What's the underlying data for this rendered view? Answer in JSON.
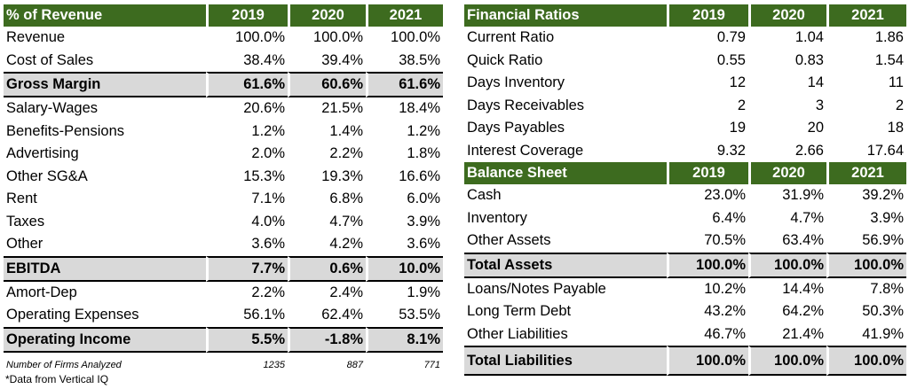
{
  "income": {
    "header": [
      "% of Revenue",
      "2019",
      "2020",
      "2021"
    ],
    "rows": [
      {
        "label": "Revenue",
        "values": [
          "100.0%",
          "100.0%",
          "100.0%"
        ],
        "bold": false
      },
      {
        "label": "Cost of Sales",
        "values": [
          "38.4%",
          "39.4%",
          "38.5%"
        ],
        "bold": false
      },
      {
        "label": "Gross Margin",
        "values": [
          "61.6%",
          "60.6%",
          "61.6%"
        ],
        "bold": true
      },
      {
        "label": "Salary-Wages",
        "values": [
          "20.6%",
          "21.5%",
          "18.4%"
        ],
        "bold": false
      },
      {
        "label": "Benefits-Pensions",
        "values": [
          "1.2%",
          "1.4%",
          "1.2%"
        ],
        "bold": false
      },
      {
        "label": "Advertising",
        "values": [
          "2.0%",
          "2.2%",
          "1.8%"
        ],
        "bold": false
      },
      {
        "label": "Other SG&A",
        "values": [
          "15.3%",
          "19.3%",
          "16.6%"
        ],
        "bold": false
      },
      {
        "label": "Rent",
        "values": [
          "7.1%",
          "6.8%",
          "6.0%"
        ],
        "bold": false
      },
      {
        "label": "Taxes",
        "values": [
          "4.0%",
          "4.7%",
          "3.9%"
        ],
        "bold": false
      },
      {
        "label": "Other",
        "values": [
          "3.6%",
          "4.2%",
          "3.6%"
        ],
        "bold": false
      },
      {
        "label": "EBITDA",
        "values": [
          "7.7%",
          "0.6%",
          "10.0%"
        ],
        "bold": true
      },
      {
        "label": "Amort-Dep",
        "values": [
          "2.2%",
          "2.4%",
          "1.9%"
        ],
        "bold": false
      },
      {
        "label": "Operating Expenses",
        "values": [
          "56.1%",
          "62.4%",
          "53.5%"
        ],
        "bold": false
      },
      {
        "label": "Operating Income",
        "values": [
          "5.5%",
          "-1.8%",
          "8.1%"
        ],
        "bold": true
      }
    ],
    "footer": {
      "label": "Number of Firms Analyzed",
      "values": [
        "1235",
        "887",
        "771"
      ]
    }
  },
  "ratios": {
    "header": [
      "Financial Ratios",
      "2019",
      "2020",
      "2021"
    ],
    "rows": [
      {
        "label": "Current Ratio",
        "values": [
          "0.79",
          "1.04",
          "1.86"
        ],
        "bold": false
      },
      {
        "label": "Quick Ratio",
        "values": [
          "0.55",
          "0.83",
          "1.54"
        ],
        "bold": false
      },
      {
        "label": "Days Inventory",
        "values": [
          "12",
          "14",
          "11"
        ],
        "bold": false
      },
      {
        "label": "Days Receivables",
        "values": [
          "2",
          "3",
          "2"
        ],
        "bold": false
      },
      {
        "label": "Days Payables",
        "values": [
          "19",
          "20",
          "18"
        ],
        "bold": false
      },
      {
        "label": "Interest Coverage",
        "values": [
          "9.32",
          "2.66",
          "17.64"
        ],
        "bold": false
      }
    ]
  },
  "balance": {
    "header": [
      "Balance Sheet",
      "2019",
      "2020",
      "2021"
    ],
    "rows": [
      {
        "label": "Cash",
        "values": [
          "23.0%",
          "31.9%",
          "39.2%"
        ],
        "bold": false
      },
      {
        "label": "Inventory",
        "values": [
          "6.4%",
          "4.7%",
          "3.9%"
        ],
        "bold": false
      },
      {
        "label": "Other Assets",
        "values": [
          "70.5%",
          "63.4%",
          "56.9%"
        ],
        "bold": false
      },
      {
        "label": "Total Assets",
        "values": [
          "100.0%",
          "100.0%",
          "100.0%"
        ],
        "bold": true
      },
      {
        "label": "Loans/Notes Payable",
        "values": [
          "10.2%",
          "14.4%",
          "7.8%"
        ],
        "bold": false
      },
      {
        "label": "Long Term Debt",
        "values": [
          "43.2%",
          "64.2%",
          "50.3%"
        ],
        "bold": false
      },
      {
        "label": "Other Liabilities",
        "values": [
          "46.7%",
          "21.4%",
          "41.9%"
        ],
        "bold": false
      },
      {
        "label": "Total Liabilities",
        "values": [
          "100.0%",
          "100.0%",
          "100.0%"
        ],
        "bold": true
      }
    ]
  },
  "note": "*Data from Vertical IQ",
  "colors": {
    "header_bg": "#3d6b1f",
    "header_text": "#ffffff",
    "highlight_bg": "#d9d9d9"
  }
}
